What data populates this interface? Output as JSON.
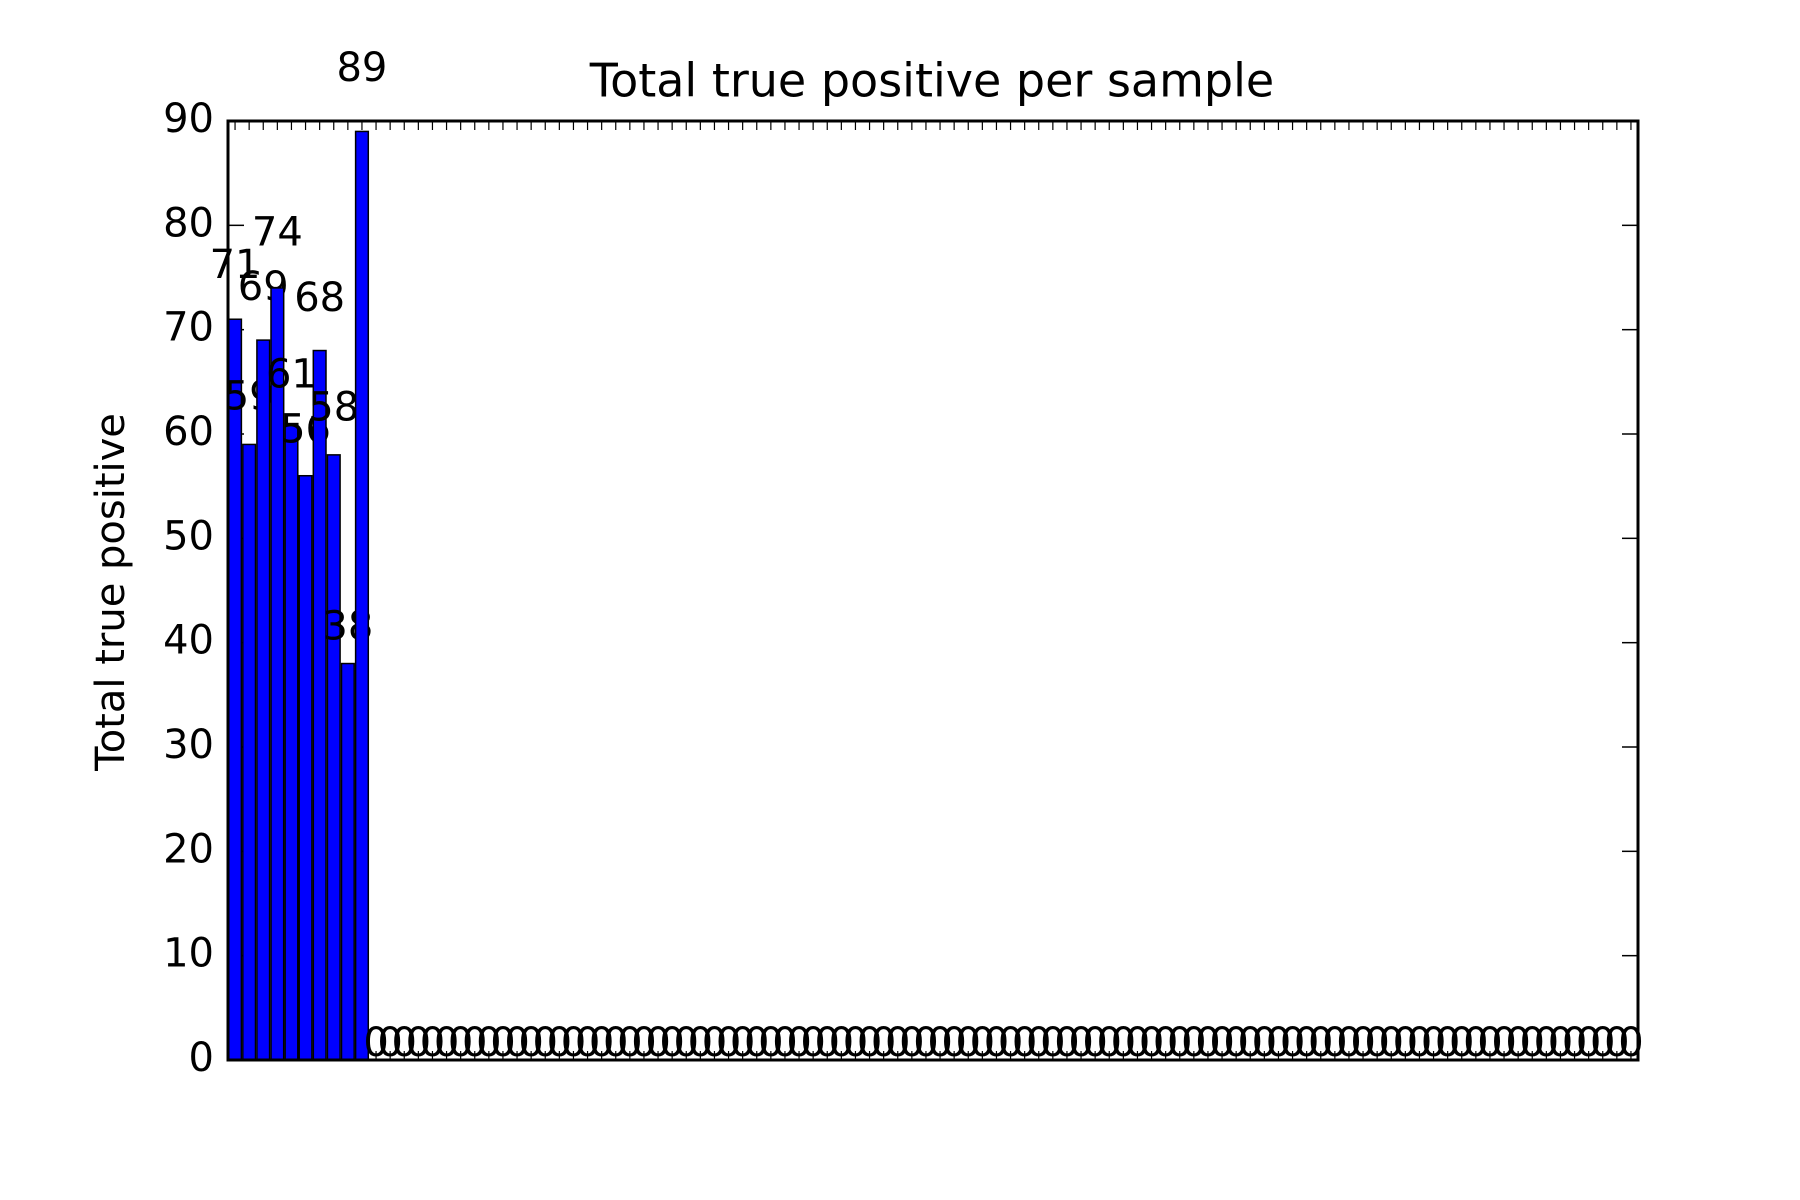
{
  "chart_data": {
    "type": "bar",
    "title": "Total true positive per sample",
    "ylabel": "Total true positive",
    "categories": [
      null,
      null,
      null,
      null,
      null,
      null,
      null,
      null,
      null,
      null,
      null,
      null,
      null,
      null,
      null,
      null,
      null,
      null,
      null,
      null,
      null,
      null,
      null,
      null,
      null,
      null,
      null,
      null,
      null,
      null,
      null,
      null,
      null,
      null,
      null,
      null,
      null,
      null,
      null,
      null,
      null,
      null,
      null,
      null,
      null,
      null,
      null,
      null,
      null,
      null,
      null,
      null,
      null,
      null,
      null,
      null,
      null,
      null,
      null,
      null,
      null,
      null,
      null,
      null,
      null,
      null,
      null,
      null,
      null,
      null,
      null,
      null,
      null,
      null,
      null,
      null,
      null,
      null,
      null,
      null,
      null,
      null,
      null,
      null,
      null,
      null,
      null,
      null,
      null,
      null,
      null,
      null,
      null,
      null,
      null,
      null,
      null,
      null,
      null,
      null
    ],
    "values": [
      71,
      59,
      69,
      74,
      61,
      56,
      68,
      58,
      38,
      89,
      0,
      0,
      0,
      0,
      0,
      0,
      0,
      0,
      0,
      0,
      0,
      0,
      0,
      0,
      0,
      0,
      0,
      0,
      0,
      0,
      0,
      0,
      0,
      0,
      0,
      0,
      0,
      0,
      0,
      0,
      0,
      0,
      0,
      0,
      0,
      0,
      0,
      0,
      0,
      0,
      0,
      0,
      0,
      0,
      0,
      0,
      0,
      0,
      0,
      0,
      0,
      0,
      0,
      0,
      0,
      0,
      0,
      0,
      0,
      0,
      0,
      0,
      0,
      0,
      0,
      0,
      0,
      0,
      0,
      0,
      0,
      0,
      0,
      0,
      0,
      0,
      0,
      0,
      0,
      0,
      0,
      0,
      0,
      0,
      0,
      0,
      0,
      0,
      0,
      0
    ],
    "color": "#0000ff",
    "ylim": [
      0,
      90
    ],
    "yticks": [
      0,
      10,
      20,
      30,
      40,
      50,
      60,
      70,
      80,
      90
    ],
    "grid": false
  }
}
